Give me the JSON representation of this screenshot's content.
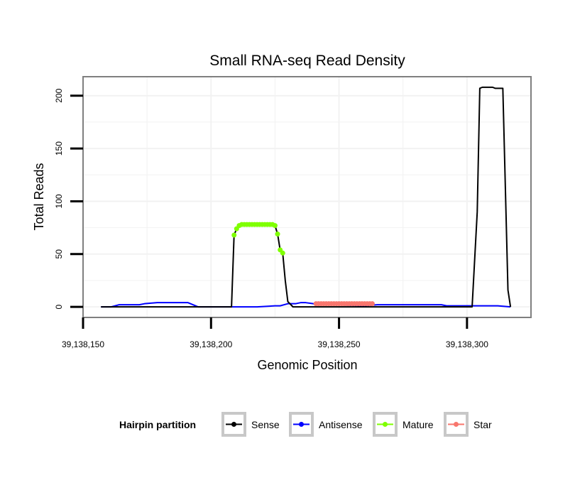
{
  "chart_data": {
    "type": "line",
    "title": "Small RNA-seq Read Density",
    "xlabel": "Genomic Position",
    "ylabel": "Total Reads",
    "xlim": [
      39138150,
      39138325
    ],
    "ylim": [
      -10,
      218
    ],
    "x_ticks": [
      39138150,
      39138200,
      39138250,
      39138300
    ],
    "x_tick_labels": [
      "39,138,150",
      "39,138,200",
      "39,138,250",
      "39,138,300"
    ],
    "y_ticks": [
      0,
      50,
      100,
      150,
      200
    ],
    "y_tick_labels": [
      "0",
      "50",
      "100",
      "150",
      "200"
    ],
    "grid": true,
    "legend": {
      "title": "Hairpin partition",
      "position": "bottom",
      "entries": [
        "Sense",
        "Antisense",
        "Mature",
        "Star"
      ]
    },
    "colors": {
      "Sense": "#000000",
      "Antisense": "#0000ff",
      "Mature": "#7fff00",
      "Star": "#f8766d",
      "panel_border": "#7f7f7f",
      "grid": "#f2f2f2"
    },
    "series": [
      {
        "name": "Sense",
        "style": "line",
        "x": [
          39138157,
          39138208,
          39138209,
          39138210,
          39138211,
          39138212,
          39138213,
          39138214,
          39138215,
          39138224,
          39138225,
          39138226,
          39138227,
          39138228,
          39138229,
          39138230,
          39138232,
          39138240,
          39138241,
          39138263,
          39138264,
          39138285,
          39138294,
          39138302,
          39138304,
          39138305,
          39138306,
          39138310,
          39138311,
          39138313,
          39138314,
          39138316,
          39138317
        ],
        "values": [
          0,
          0,
          68,
          74,
          77,
          78,
          78,
          78,
          78,
          78,
          77,
          69,
          54,
          51,
          25,
          5,
          0,
          0,
          0,
          0,
          0,
          0,
          0,
          0,
          90,
          207,
          208,
          208,
          207,
          207,
          207,
          16,
          0
        ]
      },
      {
        "name": "Antisense",
        "style": "line",
        "x": [
          39138157,
          39138161,
          39138164,
          39138172,
          39138174,
          39138179,
          39138182,
          39138191,
          39138193,
          39138195,
          39138197,
          39138210,
          39138218,
          39138225,
          39138227,
          39138230,
          39138233,
          39138235,
          39138237,
          39138240,
          39138242,
          39138248,
          39138260,
          39138265,
          39138272,
          39138290,
          39138292,
          39138300,
          39138309,
          39138312,
          39138317
        ],
        "values": [
          0,
          0,
          2,
          2,
          3,
          4,
          4,
          4,
          2,
          0,
          0,
          0,
          0,
          1,
          1,
          3,
          3,
          4,
          4,
          3,
          2,
          2,
          1,
          2,
          2,
          2,
          1,
          1,
          1,
          1,
          0
        ]
      },
      {
        "name": "Mature",
        "style": "points",
        "x": [
          39138209,
          39138210,
          39138211,
          39138212,
          39138213,
          39138214,
          39138215,
          39138216,
          39138217,
          39138218,
          39138219,
          39138220,
          39138221,
          39138222,
          39138223,
          39138224,
          39138225,
          39138226,
          39138227,
          39138228
        ],
        "values": [
          68,
          74,
          77,
          78,
          78,
          78,
          78,
          78,
          78,
          78,
          78,
          78,
          78,
          78,
          78,
          78,
          77,
          69,
          54,
          51
        ]
      },
      {
        "name": "Star",
        "style": "points",
        "x": [
          39138241,
          39138242,
          39138243,
          39138244,
          39138245,
          39138246,
          39138247,
          39138248,
          39138249,
          39138250,
          39138251,
          39138252,
          39138253,
          39138254,
          39138255,
          39138256,
          39138257,
          39138258,
          39138259,
          39138260,
          39138261,
          39138262,
          39138263
        ],
        "values": [
          3,
          3,
          3,
          3,
          3,
          3,
          3,
          3,
          3,
          3,
          3,
          3,
          3,
          3,
          3,
          3,
          3,
          3,
          3,
          3,
          3,
          3,
          3
        ]
      }
    ]
  }
}
